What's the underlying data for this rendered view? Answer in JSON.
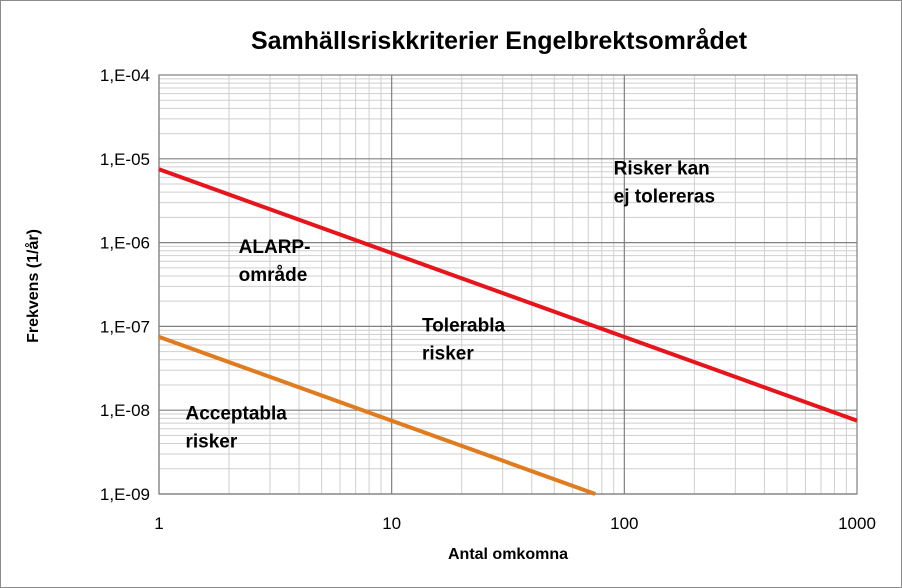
{
  "chart_data": {
    "type": "line",
    "title": "Samhällsriskkriterier Engelbrektsområdet",
    "xlabel": "Antal omkomna",
    "ylabel": "Frekvens (1/år)",
    "x_scale": "log",
    "y_scale": "log",
    "xlim": [
      1,
      1000
    ],
    "ylim": [
      1e-09,
      0.0001
    ],
    "x_ticks": [
      1,
      10,
      100,
      1000
    ],
    "x_tick_labels": [
      "1",
      "10",
      "100",
      "1000"
    ],
    "y_ticks": [
      1e-09,
      1e-08,
      1e-07,
      1e-06,
      1e-05,
      0.0001
    ],
    "y_tick_labels": [
      "1,E-09",
      "1,E-08",
      "1,E-07",
      "1,E-06",
      "1,E-05",
      "1,E-04"
    ],
    "grid": true,
    "legend": "none",
    "series": [
      {
        "color": "#e8141b",
        "x": [
          1,
          1000
        ],
        "y": [
          7.5e-06,
          7.5e-09
        ]
      },
      {
        "color": "#e07b1e",
        "x": [
          1,
          75
        ],
        "y": [
          7.5e-08,
          1e-09
        ]
      }
    ],
    "annotations": [
      {
        "lines": [
          "Risker kan",
          "ej tolereras"
        ],
        "x": 90,
        "y": 6.5e-06
      },
      {
        "lines": [
          "ALARP-",
          "område"
        ],
        "x": 2.2,
        "y": 7.5e-07
      },
      {
        "lines": [
          "Tolerabla",
          "risker"
        ],
        "x": 13.5,
        "y": 8.7e-08
      },
      {
        "lines": [
          "Acceptabla",
          "risker"
        ],
        "x": 1.3,
        "y": 7.7e-09
      }
    ]
  }
}
